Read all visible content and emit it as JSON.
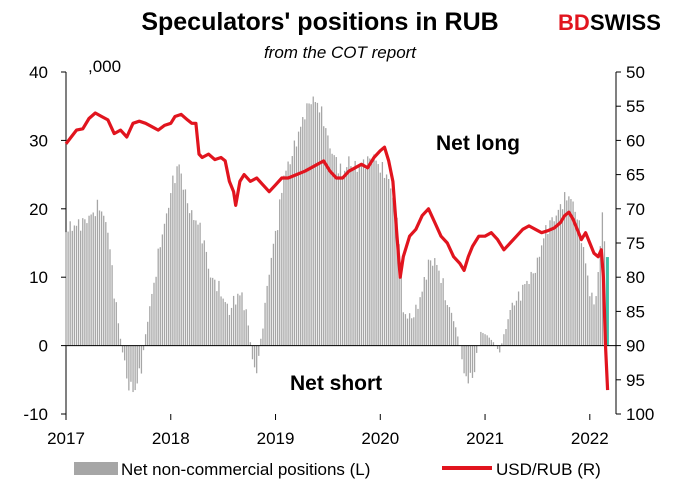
{
  "header": {
    "title": "Speculators' positions in RUB",
    "subtitle": "from the COT report",
    "logo": {
      "part1": "BD",
      "part2": "SWISS",
      "brand_color": "#e1141e"
    }
  },
  "annotations": {
    "net_long": "Net long",
    "net_short": "Net short",
    "units": ",000"
  },
  "legend": {
    "bars_label": "Net non-commercial positions (L)",
    "line_label": "USD/RUB (R)"
  },
  "colors": {
    "bars": "#a6a6a6",
    "last_bar": "#3fbfa8",
    "line": "#e1141e"
  },
  "chart_data": {
    "type": "bar",
    "x_range": [
      2017,
      2022.25
    ],
    "x_ticks": [
      "2017",
      "2018",
      "2019",
      "2020",
      "2021",
      "2022"
    ],
    "left_axis": {
      "ylim": [
        -10,
        40
      ],
      "ticks": [
        "-10",
        "0",
        "10",
        "20",
        "30",
        "40"
      ]
    },
    "right_axis": {
      "ylim": [
        100,
        50
      ],
      "inverted": true,
      "ticks": [
        "100",
        "95",
        "90",
        "85",
        "80",
        "75",
        "70",
        "65",
        "60",
        "55",
        "50"
      ]
    },
    "series": [
      {
        "name": "Net non-commercial positions (L)",
        "kind": "bar",
        "axis": "left",
        "points": [
          [
            2017.0,
            17
          ],
          [
            2017.08,
            17.5
          ],
          [
            2017.16,
            18
          ],
          [
            2017.24,
            19
          ],
          [
            2017.32,
            20.5
          ],
          [
            2017.4,
            17
          ],
          [
            2017.46,
            8
          ],
          [
            2017.52,
            1
          ],
          [
            2017.56,
            -3
          ],
          [
            2017.6,
            -6
          ],
          [
            2017.66,
            -6.5
          ],
          [
            2017.72,
            -3
          ],
          [
            2017.78,
            4
          ],
          [
            2017.84,
            9
          ],
          [
            2017.9,
            15
          ],
          [
            2017.96,
            19
          ],
          [
            2018.02,
            24
          ],
          [
            2018.08,
            26.5
          ],
          [
            2018.14,
            22
          ],
          [
            2018.2,
            19
          ],
          [
            2018.26,
            18
          ],
          [
            2018.32,
            15
          ],
          [
            2018.38,
            10
          ],
          [
            2018.44,
            9
          ],
          [
            2018.5,
            7
          ],
          [
            2018.56,
            5
          ],
          [
            2018.62,
            7
          ],
          [
            2018.68,
            7.5
          ],
          [
            2018.74,
            3
          ],
          [
            2018.78,
            -2
          ],
          [
            2018.82,
            -4
          ],
          [
            2018.86,
            1
          ],
          [
            2018.9,
            6
          ],
          [
            2018.96,
            13
          ],
          [
            2019.02,
            18
          ],
          [
            2019.08,
            25
          ],
          [
            2019.14,
            27
          ],
          [
            2019.2,
            30
          ],
          [
            2019.28,
            34
          ],
          [
            2019.34,
            36
          ],
          [
            2019.4,
            35.5
          ],
          [
            2019.46,
            33
          ],
          [
            2019.52,
            29
          ],
          [
            2019.58,
            27
          ],
          [
            2019.64,
            25
          ],
          [
            2019.7,
            27
          ],
          [
            2019.76,
            26
          ],
          [
            2019.82,
            26.5
          ],
          [
            2019.88,
            27
          ],
          [
            2019.94,
            27.5
          ],
          [
            2020.0,
            26
          ],
          [
            2020.06,
            25
          ],
          [
            2020.12,
            22
          ],
          [
            2020.18,
            16
          ],
          [
            2020.22,
            5
          ],
          [
            2020.28,
            4
          ],
          [
            2020.34,
            5
          ],
          [
            2020.4,
            8
          ],
          [
            2020.46,
            12
          ],
          [
            2020.52,
            12.5
          ],
          [
            2020.58,
            10
          ],
          [
            2020.64,
            6
          ],
          [
            2020.7,
            4
          ],
          [
            2020.76,
            0
          ],
          [
            2020.8,
            -4
          ],
          [
            2020.84,
            -5
          ],
          [
            2020.88,
            -4.5
          ],
          [
            2020.92,
            -2
          ],
          [
            2020.96,
            2
          ],
          [
            2021.02,
            1.5
          ],
          [
            2021.08,
            0.5
          ],
          [
            2021.14,
            -1
          ],
          [
            2021.2,
            3
          ],
          [
            2021.26,
            6
          ],
          [
            2021.32,
            7
          ],
          [
            2021.38,
            9
          ],
          [
            2021.44,
            10
          ],
          [
            2021.5,
            12
          ],
          [
            2021.56,
            16
          ],
          [
            2021.62,
            18
          ],
          [
            2021.68,
            19
          ],
          [
            2021.74,
            21
          ],
          [
            2021.8,
            22
          ],
          [
            2021.86,
            20
          ],
          [
            2021.92,
            16
          ],
          [
            2021.96,
            12
          ],
          [
            2022.0,
            8
          ],
          [
            2022.04,
            6
          ],
          [
            2022.08,
            10
          ],
          [
            2022.12,
            19.5
          ],
          [
            2022.17,
            10
          ]
        ]
      },
      {
        "name": "USD/RUB (R)",
        "kind": "line",
        "axis": "right",
        "points": [
          [
            2017.0,
            60.5
          ],
          [
            2017.05,
            59.5
          ],
          [
            2017.1,
            58.5
          ],
          [
            2017.16,
            58.3
          ],
          [
            2017.22,
            56.8
          ],
          [
            2017.28,
            56
          ],
          [
            2017.34,
            56.5
          ],
          [
            2017.4,
            57
          ],
          [
            2017.46,
            59
          ],
          [
            2017.52,
            58.5
          ],
          [
            2017.58,
            59.5
          ],
          [
            2017.64,
            57.5
          ],
          [
            2017.7,
            57.2
          ],
          [
            2017.76,
            57.5
          ],
          [
            2017.82,
            58
          ],
          [
            2017.88,
            58.5
          ],
          [
            2017.94,
            57.8
          ],
          [
            2018.0,
            57.5
          ],
          [
            2018.04,
            56.5
          ],
          [
            2018.1,
            56.2
          ],
          [
            2018.16,
            57
          ],
          [
            2018.2,
            57.5
          ],
          [
            2018.24,
            57.5
          ],
          [
            2018.27,
            62
          ],
          [
            2018.3,
            62.5
          ],
          [
            2018.36,
            62
          ],
          [
            2018.42,
            62.8
          ],
          [
            2018.48,
            62.5
          ],
          [
            2018.52,
            63
          ],
          [
            2018.56,
            66
          ],
          [
            2018.6,
            67.5
          ],
          [
            2018.62,
            69.5
          ],
          [
            2018.66,
            66
          ],
          [
            2018.7,
            65
          ],
          [
            2018.76,
            66
          ],
          [
            2018.82,
            65.5
          ],
          [
            2018.88,
            66.5
          ],
          [
            2018.94,
            67.5
          ],
          [
            2019.0,
            66.5
          ],
          [
            2019.06,
            65.5
          ],
          [
            2019.12,
            65.5
          ],
          [
            2019.2,
            65
          ],
          [
            2019.28,
            64.5
          ],
          [
            2019.34,
            64
          ],
          [
            2019.4,
            63.5
          ],
          [
            2019.46,
            63
          ],
          [
            2019.52,
            64.5
          ],
          [
            2019.58,
            65.5
          ],
          [
            2019.64,
            65.5
          ],
          [
            2019.7,
            64.5
          ],
          [
            2019.76,
            64
          ],
          [
            2019.82,
            63.5
          ],
          [
            2019.88,
            64
          ],
          [
            2019.94,
            62.5
          ],
          [
            2020.0,
            61.5
          ],
          [
            2020.04,
            61
          ],
          [
            2020.08,
            63
          ],
          [
            2020.12,
            66
          ],
          [
            2020.16,
            74
          ],
          [
            2020.19,
            80
          ],
          [
            2020.22,
            77
          ],
          [
            2020.28,
            74
          ],
          [
            2020.34,
            73
          ],
          [
            2020.4,
            71
          ],
          [
            2020.46,
            70
          ],
          [
            2020.52,
            72
          ],
          [
            2020.58,
            74
          ],
          [
            2020.64,
            75
          ],
          [
            2020.7,
            77
          ],
          [
            2020.76,
            78
          ],
          [
            2020.8,
            79
          ],
          [
            2020.84,
            77
          ],
          [
            2020.88,
            75.5
          ],
          [
            2020.94,
            74
          ],
          [
            2021.0,
            74
          ],
          [
            2021.06,
            73.5
          ],
          [
            2021.12,
            74.5
          ],
          [
            2021.18,
            76
          ],
          [
            2021.24,
            75
          ],
          [
            2021.3,
            74
          ],
          [
            2021.36,
            73
          ],
          [
            2021.42,
            72.5
          ],
          [
            2021.48,
            73
          ],
          [
            2021.54,
            73.5
          ],
          [
            2021.6,
            73.2
          ],
          [
            2021.66,
            72.8
          ],
          [
            2021.72,
            72
          ],
          [
            2021.76,
            71
          ],
          [
            2021.8,
            70.5
          ],
          [
            2021.84,
            71.5
          ],
          [
            2021.88,
            73
          ],
          [
            2021.92,
            74.5
          ],
          [
            2021.96,
            73.5
          ],
          [
            2022.0,
            75
          ],
          [
            2022.04,
            76.5
          ],
          [
            2022.08,
            77
          ],
          [
            2022.11,
            76
          ],
          [
            2022.13,
            80
          ],
          [
            2022.15,
            90
          ],
          [
            2022.17,
            96.5
          ]
        ]
      }
    ]
  }
}
